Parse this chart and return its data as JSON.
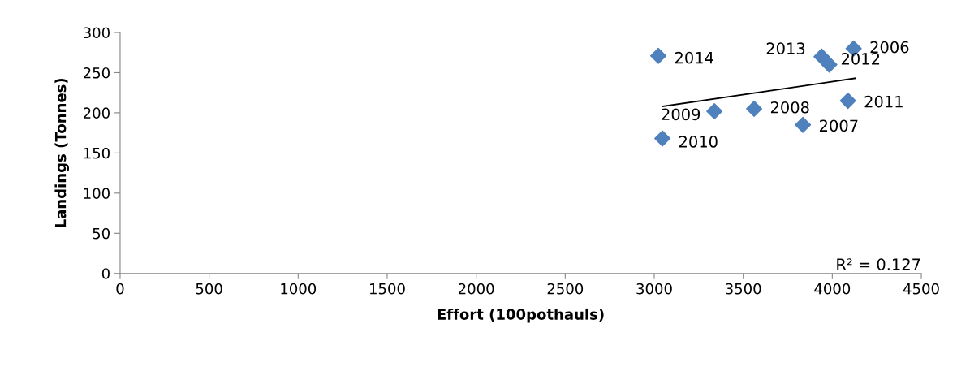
{
  "chart_data": {
    "type": "scatter",
    "xlabel": "Effort (100pothauls)",
    "ylabel": "Landings (Tonnes)",
    "xlim": [
      0,
      4500
    ],
    "xticks": [
      0,
      500,
      1000,
      1500,
      2000,
      2500,
      3000,
      3500,
      4000,
      4500
    ],
    "ylim": [
      0,
      300
    ],
    "yticks": [
      0,
      50,
      100,
      150,
      200,
      250,
      300
    ],
    "grid": false,
    "legend": false,
    "series": [
      {
        "marker": "diamond",
        "color": "#4f81bd",
        "x": [
          4120,
          3835,
          3561,
          3338,
          3046,
          4088,
          3983,
          3940,
          3023
        ],
        "values": [
          280,
          185,
          205,
          202,
          168,
          215,
          260,
          270,
          271
        ]
      },
      {
        "type": "line",
        "marker": "none",
        "color": "#000000",
        "x": [
          3049,
          4128
        ],
        "values": [
          208,
          243
        ]
      }
    ],
    "annotations": [
      {
        "text": "2006",
        "x": 4120,
        "y": 280
      },
      {
        "text": "2007",
        "x": 3835,
        "y": 185
      },
      {
        "text": "2008",
        "x": 3561,
        "y": 205
      },
      {
        "text": "2009",
        "x": 3338,
        "y": 202
      },
      {
        "text": "2010",
        "x": 3046,
        "y": 168
      },
      {
        "text": "2011",
        "x": 4088,
        "y": 215
      },
      {
        "text": "2012",
        "x": 3983,
        "y": 260
      },
      {
        "text": "2013",
        "x": 3940,
        "y": 270
      },
      {
        "text": "2014",
        "x": 3023,
        "y": 271
      },
      "R² = 0.127"
    ]
  }
}
